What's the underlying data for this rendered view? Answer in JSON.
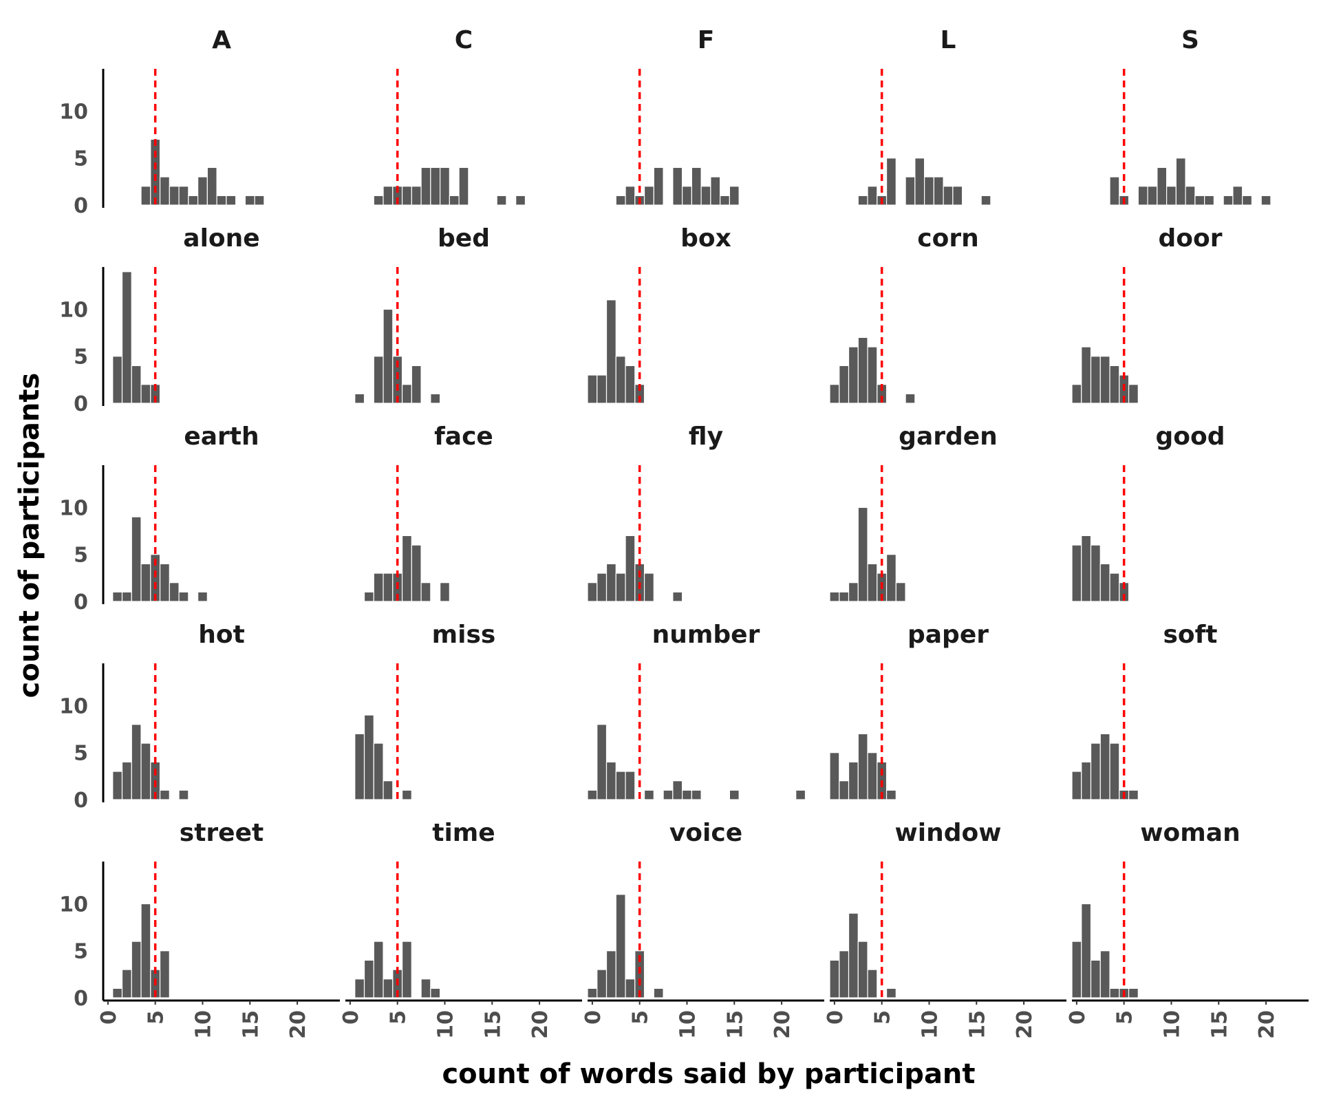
{
  "chart_data": {
    "type": "bar",
    "subtype": "faceted-histogram",
    "xlabel": "count of words said by participant",
    "ylabel": "count of participants",
    "xlim": [
      -0.5,
      24.5
    ],
    "ylim": [
      0,
      14.5
    ],
    "x_ticks": [
      0,
      5,
      10,
      15,
      20
    ],
    "y_ticks": [
      0,
      5,
      10
    ],
    "reference_line": {
      "x": 5,
      "color": "#ff0000",
      "style": "dashed"
    },
    "bar_color": "#595959",
    "facets": [
      {
        "title": "A",
        "bins": [
          [
            4,
            2
          ],
          [
            5,
            7
          ],
          [
            6,
            3
          ],
          [
            7,
            2
          ],
          [
            8,
            2
          ],
          [
            9,
            1
          ],
          [
            10,
            3
          ],
          [
            11,
            4
          ],
          [
            12,
            1
          ],
          [
            13,
            1
          ],
          [
            15,
            1
          ],
          [
            16,
            1
          ]
        ]
      },
      {
        "title": "C",
        "bins": [
          [
            3,
            1
          ],
          [
            4,
            2
          ],
          [
            5,
            2
          ],
          [
            6,
            2
          ],
          [
            7,
            2
          ],
          [
            8,
            4
          ],
          [
            9,
            4
          ],
          [
            10,
            4
          ],
          [
            11,
            1
          ],
          [
            12,
            4
          ],
          [
            16,
            1
          ],
          [
            18,
            1
          ]
        ]
      },
      {
        "title": "F",
        "bins": [
          [
            3,
            1
          ],
          [
            4,
            2
          ],
          [
            5,
            1
          ],
          [
            6,
            2
          ],
          [
            7,
            4
          ],
          [
            9,
            4
          ],
          [
            10,
            2
          ],
          [
            11,
            4
          ],
          [
            12,
            2
          ],
          [
            13,
            3
          ],
          [
            14,
            1
          ],
          [
            15,
            2
          ]
        ]
      },
      {
        "title": "L",
        "bins": [
          [
            3,
            1
          ],
          [
            4,
            2
          ],
          [
            5,
            1
          ],
          [
            6,
            5
          ],
          [
            8,
            3
          ],
          [
            9,
            5
          ],
          [
            10,
            3
          ],
          [
            11,
            3
          ],
          [
            12,
            2
          ],
          [
            13,
            2
          ],
          [
            16,
            1
          ]
        ]
      },
      {
        "title": "S",
        "bins": [
          [
            4,
            3
          ],
          [
            5,
            1
          ],
          [
            7,
            2
          ],
          [
            8,
            2
          ],
          [
            9,
            4
          ],
          [
            10,
            2
          ],
          [
            11,
            5
          ],
          [
            12,
            2
          ],
          [
            13,
            1
          ],
          [
            14,
            1
          ],
          [
            16,
            1
          ],
          [
            17,
            2
          ],
          [
            18,
            1
          ],
          [
            20,
            1
          ]
        ]
      },
      {
        "title": "alone",
        "bins": [
          [
            1,
            5
          ],
          [
            2,
            14
          ],
          [
            3,
            4
          ],
          [
            4,
            2
          ],
          [
            5,
            2
          ]
        ]
      },
      {
        "title": "bed",
        "bins": [
          [
            1,
            1
          ],
          [
            3,
            5
          ],
          [
            4,
            10
          ],
          [
            5,
            5
          ],
          [
            6,
            2
          ],
          [
            7,
            4
          ],
          [
            9,
            1
          ]
        ]
      },
      {
        "title": "box",
        "bins": [
          [
            0,
            3
          ],
          [
            1,
            3
          ],
          [
            2,
            11
          ],
          [
            3,
            5
          ],
          [
            4,
            4
          ],
          [
            5,
            2
          ]
        ]
      },
      {
        "title": "corn",
        "bins": [
          [
            0,
            2
          ],
          [
            1,
            4
          ],
          [
            2,
            6
          ],
          [
            3,
            7
          ],
          [
            4,
            6
          ],
          [
            5,
            2
          ],
          [
            8,
            1
          ]
        ]
      },
      {
        "title": "door",
        "bins": [
          [
            0,
            2
          ],
          [
            1,
            6
          ],
          [
            2,
            5
          ],
          [
            3,
            5
          ],
          [
            4,
            4
          ],
          [
            5,
            3
          ],
          [
            6,
            2
          ]
        ]
      },
      {
        "title": "earth",
        "bins": [
          [
            1,
            1
          ],
          [
            2,
            1
          ],
          [
            3,
            9
          ],
          [
            4,
            4
          ],
          [
            5,
            5
          ],
          [
            6,
            4
          ],
          [
            7,
            2
          ],
          [
            8,
            1
          ],
          [
            10,
            1
          ]
        ]
      },
      {
        "title": "face",
        "bins": [
          [
            2,
            1
          ],
          [
            3,
            3
          ],
          [
            4,
            3
          ],
          [
            5,
            3
          ],
          [
            6,
            7
          ],
          [
            7,
            6
          ],
          [
            8,
            2
          ],
          [
            10,
            2
          ]
        ]
      },
      {
        "title": "fly",
        "bins": [
          [
            0,
            2
          ],
          [
            1,
            3
          ],
          [
            2,
            4
          ],
          [
            3,
            3
          ],
          [
            4,
            7
          ],
          [
            5,
            4
          ],
          [
            6,
            3
          ],
          [
            9,
            1
          ]
        ]
      },
      {
        "title": "garden",
        "bins": [
          [
            0,
            1
          ],
          [
            1,
            1
          ],
          [
            2,
            2
          ],
          [
            3,
            10
          ],
          [
            4,
            4
          ],
          [
            5,
            3
          ],
          [
            6,
            5
          ],
          [
            7,
            2
          ]
        ]
      },
      {
        "title": "good",
        "bins": [
          [
            0,
            6
          ],
          [
            1,
            7
          ],
          [
            2,
            6
          ],
          [
            3,
            4
          ],
          [
            4,
            3
          ],
          [
            5,
            2
          ]
        ]
      },
      {
        "title": "hot",
        "bins": [
          [
            1,
            3
          ],
          [
            2,
            4
          ],
          [
            3,
            8
          ],
          [
            4,
            6
          ],
          [
            5,
            4
          ],
          [
            6,
            1
          ],
          [
            8,
            1
          ]
        ]
      },
      {
        "title": "miss",
        "bins": [
          [
            1,
            7
          ],
          [
            2,
            9
          ],
          [
            3,
            6
          ],
          [
            4,
            2
          ],
          [
            6,
            1
          ]
        ]
      },
      {
        "title": "number",
        "bins": [
          [
            0,
            1
          ],
          [
            1,
            8
          ],
          [
            2,
            4
          ],
          [
            3,
            3
          ],
          [
            4,
            3
          ],
          [
            6,
            1
          ],
          [
            8,
            1
          ],
          [
            9,
            2
          ],
          [
            10,
            1
          ],
          [
            11,
            1
          ],
          [
            15,
            1
          ],
          [
            22,
            1
          ]
        ]
      },
      {
        "title": "paper",
        "bins": [
          [
            0,
            5
          ],
          [
            1,
            2
          ],
          [
            2,
            4
          ],
          [
            3,
            7
          ],
          [
            4,
            5
          ],
          [
            5,
            4
          ],
          [
            6,
            1
          ]
        ]
      },
      {
        "title": "soft",
        "bins": [
          [
            0,
            3
          ],
          [
            1,
            4
          ],
          [
            2,
            6
          ],
          [
            3,
            7
          ],
          [
            4,
            6
          ],
          [
            5,
            1
          ],
          [
            6,
            1
          ]
        ]
      },
      {
        "title": "street",
        "bins": [
          [
            1,
            1
          ],
          [
            2,
            3
          ],
          [
            3,
            6
          ],
          [
            4,
            10
          ],
          [
            5,
            3
          ],
          [
            6,
            5
          ]
        ]
      },
      {
        "title": "time",
        "bins": [
          [
            1,
            2
          ],
          [
            2,
            4
          ],
          [
            3,
            6
          ],
          [
            4,
            2
          ],
          [
            5,
            3
          ],
          [
            6,
            6
          ],
          [
            8,
            2
          ],
          [
            9,
            1
          ]
        ]
      },
      {
        "title": "voice",
        "bins": [
          [
            0,
            1
          ],
          [
            1,
            3
          ],
          [
            2,
            5
          ],
          [
            3,
            11
          ],
          [
            4,
            2
          ],
          [
            5,
            5
          ],
          [
            7,
            1
          ]
        ]
      },
      {
        "title": "window",
        "bins": [
          [
            0,
            4
          ],
          [
            1,
            5
          ],
          [
            2,
            9
          ],
          [
            3,
            6
          ],
          [
            4,
            3
          ],
          [
            6,
            1
          ]
        ]
      },
      {
        "title": "woman",
        "bins": [
          [
            0,
            6
          ],
          [
            1,
            10
          ],
          [
            2,
            4
          ],
          [
            3,
            5
          ],
          [
            4,
            1
          ],
          [
            5,
            1
          ],
          [
            6,
            1
          ]
        ]
      }
    ]
  }
}
